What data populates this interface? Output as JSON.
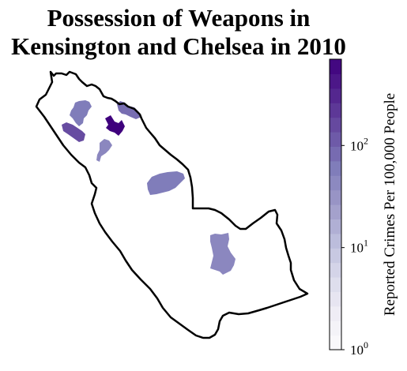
{
  "title": {
    "line1": "Possession of Weapons in",
    "line2": "Kensington and Chelsea in 2010"
  },
  "colorbar": {
    "label": "Reported Crimes Per 100,000 People",
    "scale": "log",
    "range": [
      1,
      700
    ],
    "ticks": [
      {
        "base": "10",
        "exp": "0",
        "value": 1
      },
      {
        "base": "10",
        "exp": "1",
        "value": 10
      },
      {
        "base": "10",
        "exp": "2",
        "value": 100
      }
    ],
    "color_low": "#fcfbfd",
    "color_high": "#3f007d",
    "color_stops": [
      "#fcfbfd",
      "#efedf5",
      "#dadaeb",
      "#bcbddc",
      "#9e9ac8",
      "#807dba",
      "#6a51a3",
      "#54278f",
      "#3f007d"
    ],
    "steps": 20
  },
  "map": {
    "border_color": "#000000",
    "regions": [
      {
        "name": "area-north-cluster",
        "value": 60
      },
      {
        "name": "area-north-west",
        "value": 150
      },
      {
        "name": "area-north-east",
        "value": 80
      },
      {
        "name": "area-north-center",
        "value": 700
      },
      {
        "name": "area-small-west",
        "value": 45
      },
      {
        "name": "area-central",
        "value": 60
      },
      {
        "name": "area-south",
        "value": 45
      }
    ]
  }
}
